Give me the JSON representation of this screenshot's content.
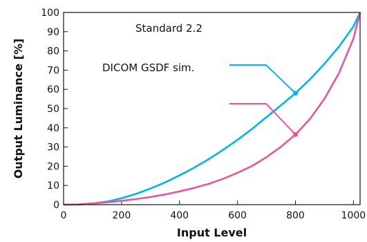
{
  "chart_data": {
    "type": "line",
    "title": "",
    "xlabel": "Input Level",
    "ylabel": "Output Luminance [%]",
    "xlim": [
      0,
      1023
    ],
    "ylim": [
      0,
      100
    ],
    "x_ticks": [
      0,
      200,
      400,
      600,
      800,
      1000
    ],
    "y_ticks": [
      0,
      10,
      20,
      30,
      40,
      50,
      60,
      70,
      80,
      90,
      100
    ],
    "grid": false,
    "series": [
      {
        "name": "DICOM GSDF sim.",
        "color": "#00b4e6",
        "marker_point": {
          "x": 800,
          "y": 58
        },
        "points": [
          {
            "x": 0,
            "y": 0
          },
          {
            "x": 50,
            "y": 0.1
          },
          {
            "x": 100,
            "y": 0.6
          },
          {
            "x": 150,
            "y": 1.6
          },
          {
            "x": 200,
            "y": 3.3
          },
          {
            "x": 250,
            "y": 5.6
          },
          {
            "x": 300,
            "y": 8.4
          },
          {
            "x": 350,
            "y": 11.6
          },
          {
            "x": 400,
            "y": 15.2
          },
          {
            "x": 450,
            "y": 19.2
          },
          {
            "x": 500,
            "y": 23.6
          },
          {
            "x": 550,
            "y": 28.5
          },
          {
            "x": 600,
            "y": 33.7
          },
          {
            "x": 650,
            "y": 39.4
          },
          {
            "x": 700,
            "y": 45.5
          },
          {
            "x": 750,
            "y": 51.7
          },
          {
            "x": 800,
            "y": 58
          },
          {
            "x": 850,
            "y": 65.2
          },
          {
            "x": 900,
            "y": 73.3
          },
          {
            "x": 950,
            "y": 82.2
          },
          {
            "x": 1000,
            "y": 92.7
          },
          {
            "x": 1023,
            "y": 100
          }
        ]
      },
      {
        "name": "Standard 2.2",
        "color": "#e8559a",
        "marker_point": {
          "x": 800,
          "y": 36.5
        },
        "points": [
          {
            "x": 0,
            "y": 0
          },
          {
            "x": 50,
            "y": 0.1
          },
          {
            "x": 100,
            "y": 0.6
          },
          {
            "x": 150,
            "y": 1.2
          },
          {
            "x": 200,
            "y": 2.0
          },
          {
            "x": 250,
            "y": 2.9
          },
          {
            "x": 300,
            "y": 4.0
          },
          {
            "x": 350,
            "y": 5.3
          },
          {
            "x": 400,
            "y": 6.9
          },
          {
            "x": 450,
            "y": 8.7
          },
          {
            "x": 500,
            "y": 10.8
          },
          {
            "x": 550,
            "y": 13.4
          },
          {
            "x": 600,
            "y": 16.6
          },
          {
            "x": 650,
            "y": 20.1
          },
          {
            "x": 700,
            "y": 24.7
          },
          {
            "x": 750,
            "y": 30.1
          },
          {
            "x": 800,
            "y": 36.5
          },
          {
            "x": 850,
            "y": 44.6
          },
          {
            "x": 900,
            "y": 55.1
          },
          {
            "x": 950,
            "y": 68.4
          },
          {
            "x": 1000,
            "y": 86.4
          },
          {
            "x": 1023,
            "y": 100
          }
        ]
      }
    ],
    "annotations": [
      {
        "text": "Standard 2.2",
        "series": "Standard 2.2"
      },
      {
        "text": "DICOM GSDF sim.",
        "series": "DICOM GSDF sim."
      }
    ]
  }
}
